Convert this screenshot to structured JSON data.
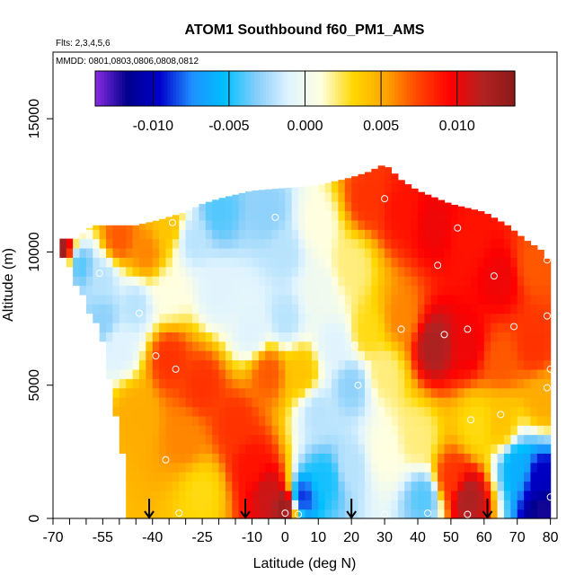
{
  "chart_data": {
    "type": "heatmap",
    "title": "ATOM1 Southbound f60_PM1_AMS",
    "flights_label": "Flts: 2,3,4,5,6",
    "dates_label": "MMDD: 0801,0803,0806,0808,0812",
    "xlabel": "Latitude (deg N)",
    "ylabel": "Altitude (m)",
    "xlim": [
      -70,
      82
    ],
    "ylim": [
      0,
      17500
    ],
    "x_ticks": [
      -70,
      -55,
      -40,
      -25,
      -10,
      0,
      10,
      20,
      30,
      40,
      50,
      60,
      70,
      80
    ],
    "x_tick_labels": [
      "-70",
      "-55",
      "-40",
      "-25",
      "-10",
      "0",
      "10",
      "20",
      "30",
      "40",
      "50",
      "60",
      "70",
      "80"
    ],
    "x_minor_ticks": [
      -65,
      -60,
      -50,
      -45,
      -35,
      -30,
      -20,
      -15,
      -5
    ],
    "y_ticks": [
      0,
      5000,
      10000,
      15000
    ],
    "y_tick_labels": [
      "0",
      "5000",
      "10000",
      "15000"
    ],
    "colorbar": {
      "range": [
        -0.0138,
        0.0138
      ],
      "ticks": [
        -0.01,
        -0.005,
        0.0,
        0.005,
        0.01
      ],
      "tick_labels": [
        "-0.010",
        "-0.005",
        "0.000",
        "0.005",
        "0.010"
      ],
      "colors": [
        "#8a2be2",
        "#00008b",
        "#0000cd",
        "#1e90ff",
        "#00bfff",
        "#87cefa",
        "#e0f4ff",
        "#ffffe0",
        "#ffd700",
        "#ffa500",
        "#ff4500",
        "#ff0000",
        "#b22222",
        "#8b1a1a"
      ]
    },
    "arrow_latitudes": [
      -41,
      -12,
      20,
      61
    ],
    "anchors": [
      {
        "lat": -68,
        "alt": 10000,
        "value": 0.013
      },
      {
        "lat": -62,
        "alt": 9500,
        "value": -0.004
      },
      {
        "lat": -55,
        "alt": 9000,
        "value": -0.002
      },
      {
        "lat": -50,
        "alt": 10500,
        "value": 0.007
      },
      {
        "lat": -42,
        "alt": 10000,
        "value": 0.006
      },
      {
        "lat": -35,
        "alt": 11000,
        "value": 0.004
      },
      {
        "lat": -28,
        "alt": 10500,
        "value": -0.002
      },
      {
        "lat": -20,
        "alt": 11500,
        "value": -0.004
      },
      {
        "lat": -5,
        "alt": 11500,
        "value": -0.003
      },
      {
        "lat": 0,
        "alt": 10000,
        "value": -0.002
      },
      {
        "lat": 10,
        "alt": 11000,
        "value": 0.001
      },
      {
        "lat": 25,
        "alt": 12000,
        "value": 0.008
      },
      {
        "lat": 35,
        "alt": 11500,
        "value": 0.009
      },
      {
        "lat": 45,
        "alt": 11000,
        "value": 0.01
      },
      {
        "lat": 55,
        "alt": 10500,
        "value": 0.009
      },
      {
        "lat": 65,
        "alt": 9000,
        "value": 0.01
      },
      {
        "lat": 75,
        "alt": 9500,
        "value": 0.007
      },
      {
        "lat": 45,
        "alt": 6500,
        "value": 0.012
      },
      {
        "lat": 55,
        "alt": 6500,
        "value": 0.01
      },
      {
        "lat": 65,
        "alt": 6000,
        "value": 0.007
      },
      {
        "lat": 75,
        "alt": 6500,
        "value": 0.008
      },
      {
        "lat": 78,
        "alt": 4500,
        "value": 0.005
      },
      {
        "lat": 35,
        "alt": 7500,
        "value": 0.006
      },
      {
        "lat": 25,
        "alt": 7000,
        "value": 0.003
      },
      {
        "lat": 15,
        "alt": 6500,
        "value": -0.001
      },
      {
        "lat": 20,
        "alt": 5000,
        "value": -0.003
      },
      {
        "lat": 20,
        "alt": 2000,
        "value": -0.002
      },
      {
        "lat": 10,
        "alt": 4000,
        "value": -0.002
      },
      {
        "lat": 5,
        "alt": 800,
        "value": -0.009
      },
      {
        "lat": 12,
        "alt": 1500,
        "value": -0.005
      },
      {
        "lat": 30,
        "alt": 2500,
        "value": 0.001
      },
      {
        "lat": 30,
        "alt": 5500,
        "value": 0.002
      },
      {
        "lat": 40,
        "alt": 3000,
        "value": 0.002
      },
      {
        "lat": 42,
        "alt": 800,
        "value": -0.004
      },
      {
        "lat": 50,
        "alt": 1500,
        "value": 0.008
      },
      {
        "lat": 55,
        "alt": 800,
        "value": 0.012
      },
      {
        "lat": 58,
        "alt": 3500,
        "value": 0.003
      },
      {
        "lat": 65,
        "alt": 3500,
        "value": 0.004
      },
      {
        "lat": 70,
        "alt": 2000,
        "value": -0.006
      },
      {
        "lat": 77,
        "alt": 1500,
        "value": -0.01
      },
      {
        "lat": 78,
        "alt": 300,
        "value": -0.012
      },
      {
        "lat": -35,
        "alt": 6000,
        "value": 0.008
      },
      {
        "lat": -25,
        "alt": 5000,
        "value": 0.008
      },
      {
        "lat": -30,
        "alt": 3000,
        "value": 0.006
      },
      {
        "lat": -15,
        "alt": 3500,
        "value": 0.008
      },
      {
        "lat": -10,
        "alt": 2000,
        "value": 0.009
      },
      {
        "lat": -5,
        "alt": 1000,
        "value": 0.011
      },
      {
        "lat": 0,
        "alt": 500,
        "value": 0.013
      },
      {
        "lat": -25,
        "alt": 1000,
        "value": 0.003
      },
      {
        "lat": -45,
        "alt": 4000,
        "value": 0.005
      },
      {
        "lat": -50,
        "alt": 6500,
        "value": -0.001
      },
      {
        "lat": -55,
        "alt": 7500,
        "value": -0.003
      },
      {
        "lat": -45,
        "alt": 8000,
        "value": -0.002
      },
      {
        "lat": -35,
        "alt": 8500,
        "value": 0.001
      },
      {
        "lat": -20,
        "alt": 8500,
        "value": -0.001
      },
      {
        "lat": -10,
        "alt": 7000,
        "value": -0.001
      },
      {
        "lat": 0,
        "alt": 7500,
        "value": -0.002
      },
      {
        "lat": 5,
        "alt": 5500,
        "value": 0.004
      },
      {
        "lat": -5,
        "alt": 5500,
        "value": 0.007
      },
      {
        "lat": 10,
        "alt": 8500,
        "value": 0.0
      },
      {
        "lat": 20,
        "alt": 9500,
        "value": 0.002
      }
    ],
    "profile_points": [
      {
        "lat": -32,
        "alt": 200
      },
      {
        "lat": -36,
        "alt": 2200
      },
      {
        "lat": -33,
        "alt": 5600
      },
      {
        "lat": -39,
        "alt": 6100
      },
      {
        "lat": -44,
        "alt": 7700
      },
      {
        "lat": -56,
        "alt": 9200
      },
      {
        "lat": -34,
        "alt": 11100
      },
      {
        "lat": -3,
        "alt": 11300
      },
      {
        "lat": 30,
        "alt": 12000
      },
      {
        "lat": 52,
        "alt": 10900
      },
      {
        "lat": 68,
        "alt": 11300
      },
      {
        "lat": 46,
        "alt": 9500
      },
      {
        "lat": 63,
        "alt": 9100
      },
      {
        "lat": 79,
        "alt": 9700
      },
      {
        "lat": 35,
        "alt": 7100
      },
      {
        "lat": 48,
        "alt": 6900
      },
      {
        "lat": 55,
        "alt": 7100
      },
      {
        "lat": 69,
        "alt": 7200
      },
      {
        "lat": 79,
        "alt": 7600
      },
      {
        "lat": 21,
        "alt": 6500
      },
      {
        "lat": 80,
        "alt": 5600
      },
      {
        "lat": 79,
        "alt": 4900
      },
      {
        "lat": 65,
        "alt": 3900
      },
      {
        "lat": 56,
        "alt": 3700
      },
      {
        "lat": 0,
        "alt": 200
      },
      {
        "lat": 4,
        "alt": 150
      },
      {
        "lat": 30,
        "alt": 150
      },
      {
        "lat": 43,
        "alt": 200
      },
      {
        "lat": 55,
        "alt": 150
      },
      {
        "lat": 80,
        "alt": 800
      },
      {
        "lat": 22,
        "alt": 5000
      }
    ]
  }
}
